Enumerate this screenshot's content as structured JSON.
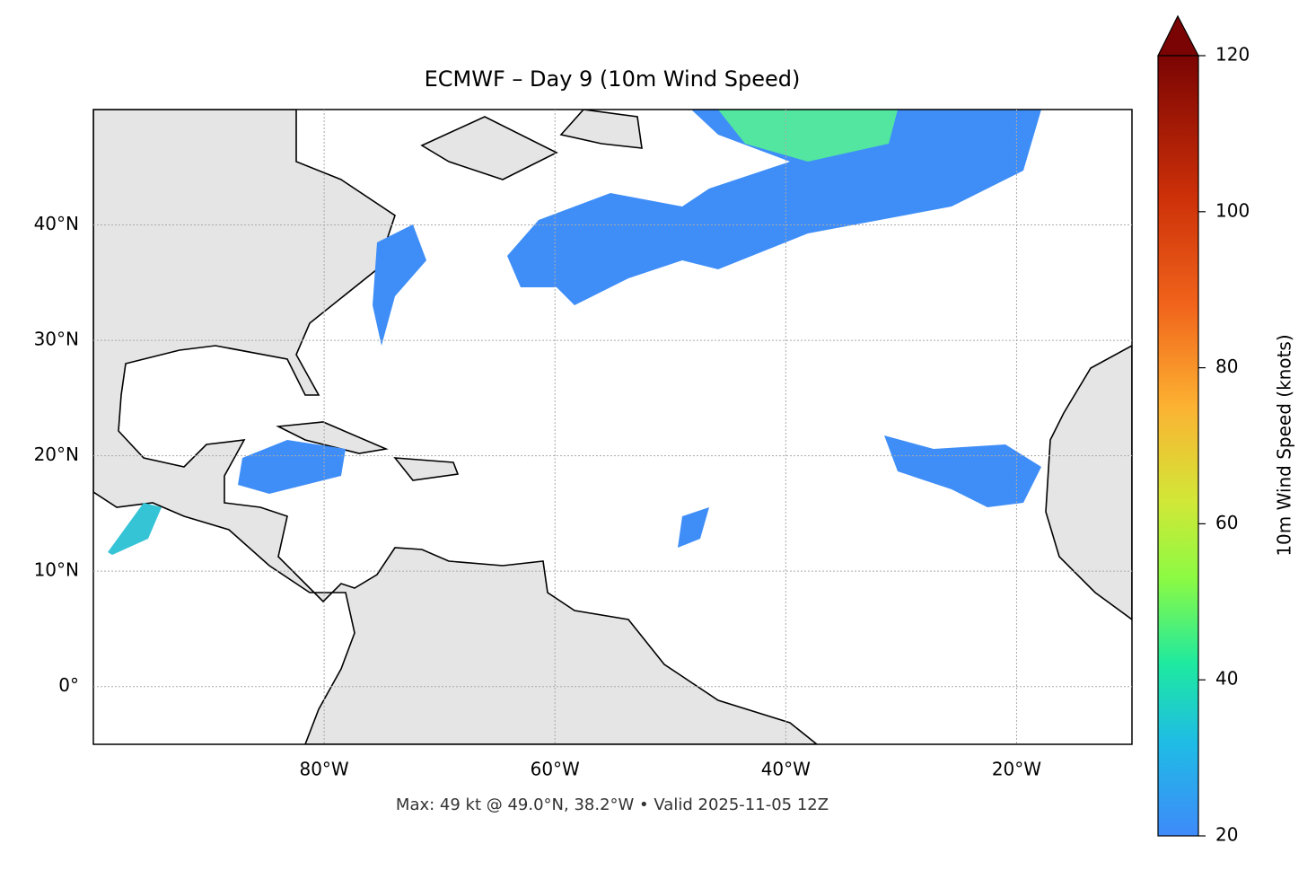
{
  "chart_data": {
    "type": "map",
    "title": "ECMWF – Day 9 (10m Wind Speed)",
    "note": "Max: 49 kt @ 49.0°N, 38.2°W • Valid 2025-11-05 12Z",
    "xlim": [
      -100,
      -10
    ],
    "ylim": [
      -5,
      50
    ],
    "xticks": [
      {
        "value": -80,
        "label": "80°W"
      },
      {
        "value": -60,
        "label": "60°W"
      },
      {
        "value": -40,
        "label": "40°W"
      },
      {
        "value": -20,
        "label": "20°W"
      }
    ],
    "yticks": [
      {
        "value": 0,
        "label": "0°"
      },
      {
        "value": 10,
        "label": "10°N"
      },
      {
        "value": 20,
        "label": "20°N"
      },
      {
        "value": 30,
        "label": "30°N"
      },
      {
        "value": 40,
        "label": "40°N"
      }
    ],
    "grid": true,
    "colorbar": {
      "label": "10m Wind Speed (knots)",
      "lim": [
        20,
        120
      ],
      "ticks": [
        20,
        40,
        60,
        80,
        100,
        120
      ]
    }
  }
}
